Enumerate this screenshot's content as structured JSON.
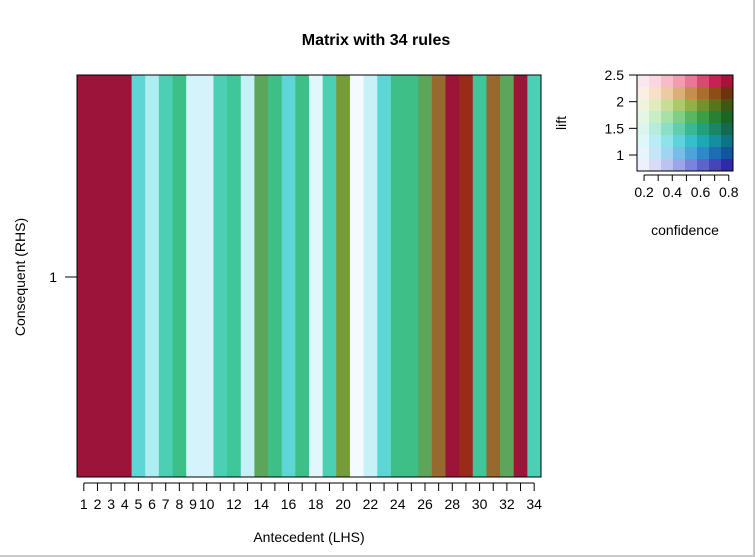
{
  "chart_data": {
    "type": "heatmap",
    "title": "Matrix with 34 rules",
    "xlabel": "Antecedent (LHS)",
    "ylabel": "Consequent (RHS)",
    "x_ticks": [
      "1",
      "2",
      "3",
      "4",
      "5",
      "6",
      "7",
      "8",
      "9",
      "10",
      "12",
      "14",
      "16",
      "18",
      "20",
      "22",
      "24",
      "26",
      "28",
      "30",
      "32",
      "34"
    ],
    "y_ticks": [
      "1"
    ],
    "rules": [
      {
        "rule": 1,
        "color": "#9c1538"
      },
      {
        "rule": 2,
        "color": "#9c1538"
      },
      {
        "rule": 3,
        "color": "#9c1538"
      },
      {
        "rule": 4,
        "color": "#9c1538"
      },
      {
        "rule": 5,
        "color": "#5fd6d6"
      },
      {
        "rule": 6,
        "color": "#aeeef2"
      },
      {
        "rule": 7,
        "color": "#4dcfb4"
      },
      {
        "rule": 8,
        "color": "#3fbf88"
      },
      {
        "rule": 9,
        "color": "#d4f3fb"
      },
      {
        "rule": 10,
        "color": "#d4f3fb"
      },
      {
        "rule": 11,
        "color": "#4dcfb4"
      },
      {
        "rule": 12,
        "color": "#3fc69a"
      },
      {
        "rule": 13,
        "color": "#c6f1f6"
      },
      {
        "rule": 14,
        "color": "#5ea55c"
      },
      {
        "rule": 15,
        "color": "#3fbf88"
      },
      {
        "rule": 16,
        "color": "#5fd6d6"
      },
      {
        "rule": 17,
        "color": "#3fbf88"
      },
      {
        "rule": 18,
        "color": "#e2f7fc"
      },
      {
        "rule": 19,
        "color": "#4dcfb4"
      },
      {
        "rule": 20,
        "color": "#759b3a"
      },
      {
        "rule": 21,
        "color": "#f4fbfe"
      },
      {
        "rule": 22,
        "color": "#c6f1f6"
      },
      {
        "rule": 23,
        "color": "#5fd6d6"
      },
      {
        "rule": 24,
        "color": "#3fbf88"
      },
      {
        "rule": 25,
        "color": "#3fbf88"
      },
      {
        "rule": 26,
        "color": "#5ea55c"
      },
      {
        "rule": 27,
        "color": "#98692e"
      },
      {
        "rule": 28,
        "color": "#9c1538"
      },
      {
        "rule": 29,
        "color": "#9a2a1a"
      },
      {
        "rule": 30,
        "color": "#3fc69a"
      },
      {
        "rule": 31,
        "color": "#98692e"
      },
      {
        "rule": 32,
        "color": "#5ea55c"
      },
      {
        "rule": 33,
        "color": "#9c1538"
      },
      {
        "rule": 34,
        "color": "#4dcfb4"
      }
    ],
    "legend": {
      "title": "lift",
      "xlabel": "confidence",
      "x_ticks": [
        "0.2",
        "0.4",
        "0.6",
        "0.8"
      ],
      "y_ticks": [
        "2.5",
        "2",
        "1.5",
        "1"
      ],
      "confidence_range": [
        0.15,
        0.83
      ],
      "lift_range": [
        0.7,
        2.5
      ],
      "grid": [
        [
          "#f9e8ef",
          "#fcd6df",
          "#f7bcc9",
          "#f09db0",
          "#e87893",
          "#d94a70",
          "#c62252",
          "#a8123d"
        ],
        [
          "#fbeee2",
          "#f8dfc6",
          "#eccaa3",
          "#dcaf78",
          "#c48f4e",
          "#a96e2c",
          "#8b4f16",
          "#6d330c"
        ],
        [
          "#f0f4dc",
          "#e0ecbd",
          "#cadd96",
          "#aec96c",
          "#90b048",
          "#71922d",
          "#57751b",
          "#3f5811"
        ],
        [
          "#e4f6e4",
          "#c8eec8",
          "#a6e2a8",
          "#7fcf84",
          "#58b861",
          "#3a9e45",
          "#268231",
          "#186622"
        ],
        [
          "#dcf6ef",
          "#b7ecdd",
          "#8ddec8",
          "#62cdaf",
          "#3ab894",
          "#23a07b",
          "#1a8663",
          "#126b4e"
        ],
        [
          "#def7f9",
          "#b8eef3",
          "#8ee2ea",
          "#5fd2dc",
          "#36bfcb",
          "#1ea8b6",
          "#158f9f",
          "#0d7485"
        ],
        [
          "#e6f4fb",
          "#c6e6f6",
          "#a0d4f0",
          "#76bee6",
          "#4ea4d9",
          "#2f88c8",
          "#1d6db4",
          "#12559c"
        ],
        [
          "#eef0fb",
          "#d8dcf6",
          "#bcc3ef",
          "#9ca5e6",
          "#7b84da",
          "#5d63cb",
          "#4644bb",
          "#2f2aa6"
        ]
      ]
    }
  }
}
